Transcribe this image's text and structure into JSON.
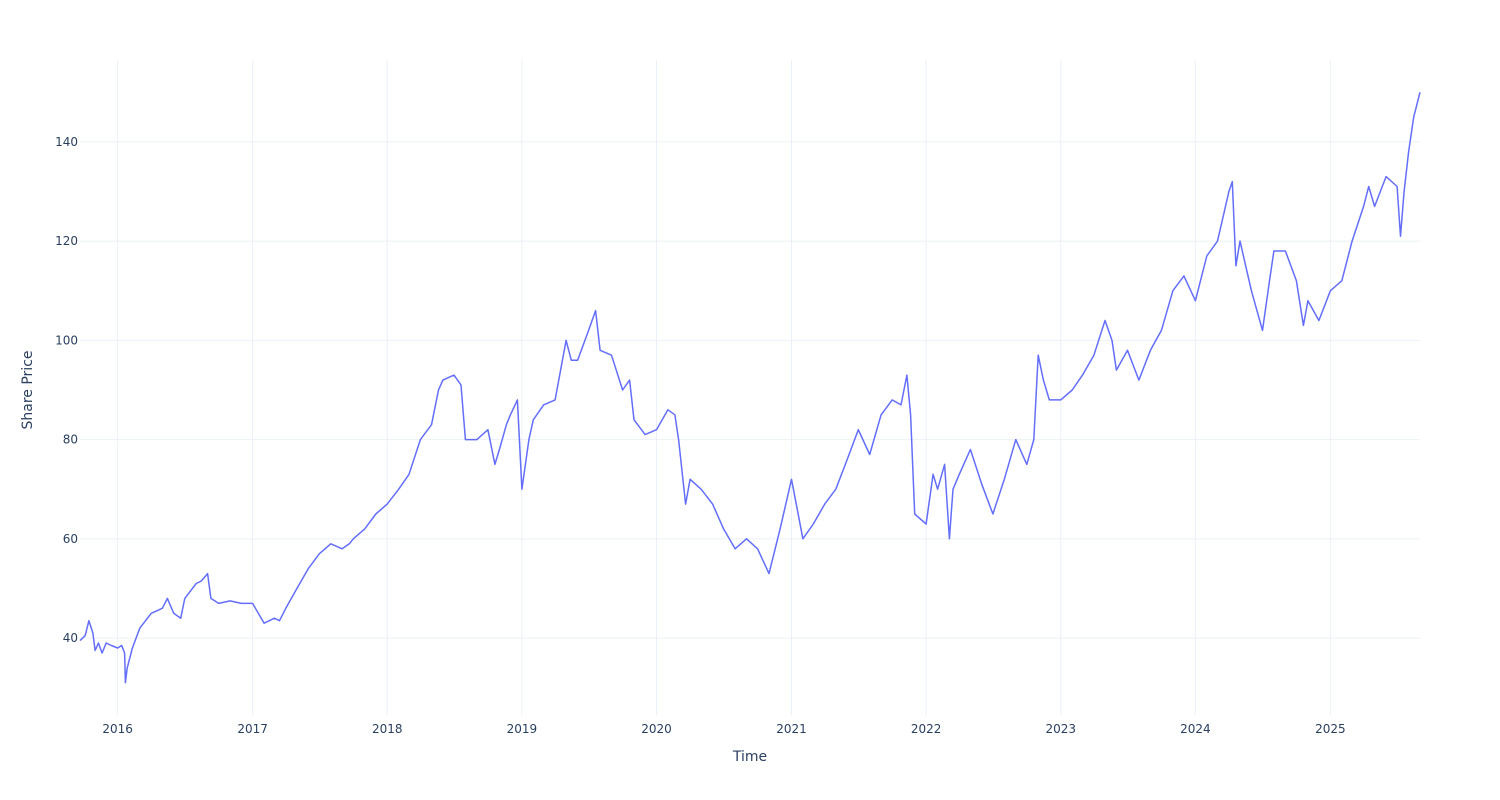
{
  "chart_data": {
    "type": "line",
    "title": "",
    "xlabel": "Time",
    "ylabel": "Share Price",
    "xlim": [
      "2015-09-21",
      "2025-09-01"
    ],
    "ylim": [
      24.5,
      156.5
    ],
    "x_tick_labels": [
      "2016",
      "2017",
      "2018",
      "2019",
      "2020",
      "2021",
      "2022",
      "2023",
      "2024",
      "2025"
    ],
    "y_ticks": [
      40,
      60,
      80,
      100,
      120,
      140
    ],
    "grid": true,
    "legend": "none",
    "line_color": "#636efa",
    "series": [
      {
        "x": [
          "2015-09-21",
          "2015-10-05",
          "2015-10-15",
          "2015-10-26",
          "2015-11-01",
          "2015-11-10",
          "2015-11-20",
          "2015-12-01",
          "2015-12-15",
          "2016-01-01",
          "2016-01-12",
          "2016-01-20",
          "2016-01-22",
          "2016-01-27",
          "2016-02-10",
          "2016-03-01",
          "2016-04-01",
          "2016-05-01",
          "2016-05-15",
          "2016-06-01",
          "2016-06-20",
          "2016-07-01",
          "2016-08-01",
          "2016-08-15",
          "2016-09-01",
          "2016-09-10",
          "2016-10-01",
          "2016-11-01",
          "2016-12-01",
          "2017-01-01",
          "2017-02-01",
          "2017-03-01",
          "2017-03-15",
          "2017-04-01",
          "2017-05-01",
          "2017-06-01",
          "2017-07-01",
          "2017-08-01",
          "2017-09-01",
          "2017-09-20",
          "2017-10-01",
          "2017-11-01",
          "2017-12-01",
          "2018-01-01",
          "2018-02-01",
          "2018-03-01",
          "2018-04-01",
          "2018-05-01",
          "2018-05-20",
          "2018-06-01",
          "2018-07-01",
          "2018-07-20",
          "2018-08-01",
          "2018-09-01",
          "2018-10-01",
          "2018-10-20",
          "2018-11-01",
          "2018-11-20",
          "2018-12-01",
          "2018-12-20",
          "2019-01-01",
          "2019-01-20",
          "2019-02-01",
          "2019-03-01",
          "2019-04-01",
          "2019-05-01",
          "2019-05-15",
          "2019-06-01",
          "2019-07-01",
          "2019-07-20",
          "2019-08-01",
          "2019-09-01",
          "2019-10-01",
          "2019-10-20",
          "2019-11-01",
          "2019-12-01",
          "2020-01-01",
          "2020-02-01",
          "2020-02-20",
          "2020-03-01",
          "2020-03-20",
          "2020-04-01",
          "2020-05-01",
          "2020-06-01",
          "2020-07-01",
          "2020-08-01",
          "2020-09-01",
          "2020-10-01",
          "2020-11-01",
          "2020-12-01",
          "2021-01-01",
          "2021-02-01",
          "2021-03-01",
          "2021-04-01",
          "2021-05-01",
          "2021-06-01",
          "2021-07-01",
          "2021-08-01",
          "2021-09-01",
          "2021-10-01",
          "2021-10-25",
          "2021-11-10",
          "2021-11-20",
          "2021-12-01",
          "2022-01-01",
          "2022-01-20",
          "2022-02-01",
          "2022-02-20",
          "2022-03-05",
          "2022-03-15",
          "2022-04-01",
          "2022-05-01",
          "2022-06-01",
          "2022-07-01",
          "2022-08-01",
          "2022-09-01",
          "2022-10-01",
          "2022-10-20",
          "2022-11-01",
          "2022-11-15",
          "2022-12-01",
          "2023-01-01",
          "2023-02-01",
          "2023-03-01",
          "2023-04-01",
          "2023-05-01",
          "2023-05-20",
          "2023-06-01",
          "2023-07-01",
          "2023-08-01",
          "2023-09-01",
          "2023-10-01",
          "2023-11-01",
          "2023-12-01",
          "2024-01-01",
          "2024-02-01",
          "2024-03-01",
          "2024-04-01",
          "2024-04-10",
          "2024-04-20",
          "2024-05-01",
          "2024-06-01",
          "2024-07-01",
          "2024-07-20",
          "2024-08-01",
          "2024-09-01",
          "2024-10-01",
          "2024-10-20",
          "2024-11-01",
          "2024-12-01",
          "2025-01-01",
          "2025-02-01",
          "2025-03-01",
          "2025-04-01",
          "2025-04-15",
          "2025-05-01",
          "2025-06-01",
          "2025-07-01",
          "2025-07-10",
          "2025-07-20",
          "2025-08-01",
          "2025-08-15",
          "2025-09-01"
        ],
        "values": [
          39.5,
          40.5,
          43.5,
          41.0,
          37.5,
          39.0,
          37.0,
          39.0,
          38.5,
          38.0,
          38.5,
          37.0,
          31.0,
          34.0,
          38.0,
          42.0,
          45.0,
          46.0,
          48.0,
          45.0,
          44.0,
          48.0,
          51.0,
          51.5,
          53.0,
          48.0,
          47.0,
          47.5,
          47.0,
          47.0,
          43.0,
          44.0,
          43.5,
          46.0,
          50.0,
          54.0,
          57.0,
          59.0,
          58.0,
          59.0,
          60.0,
          62.0,
          65.0,
          67.0,
          70.0,
          73.0,
          80.0,
          83.0,
          90.0,
          92.0,
          93.0,
          91.0,
          80.0,
          80.0,
          82.0,
          75.0,
          78.0,
          83.0,
          85.0,
          88.0,
          70.0,
          80.0,
          84.0,
          87.0,
          88.0,
          100.0,
          96.0,
          96.0,
          102.0,
          106.0,
          98.0,
          97.0,
          90.0,
          92.0,
          84.0,
          81.0,
          82.0,
          86.0,
          85.0,
          80.0,
          67.0,
          72.0,
          70.0,
          67.0,
          62.0,
          58.0,
          60.0,
          58.0,
          53.0,
          62.0,
          72.0,
          60.0,
          63.0,
          67.0,
          70.0,
          76.0,
          82.0,
          77.0,
          85.0,
          88.0,
          87.0,
          93.0,
          85.0,
          65.0,
          63.0,
          73.0,
          70.0,
          75.0,
          60.0,
          70.0,
          73.0,
          78.0,
          71.0,
          65.0,
          72.0,
          80.0,
          75.0,
          80.0,
          97.0,
          92.0,
          88.0,
          88.0,
          90.0,
          93.0,
          97.0,
          104.0,
          100.0,
          94.0,
          98.0,
          92.0,
          98.0,
          102.0,
          110.0,
          113.0,
          108.0,
          117.0,
          120.0,
          130.0,
          132.0,
          115.0,
          120.0,
          110.0,
          102.0,
          112.0,
          118.0,
          118.0,
          112.0,
          103.0,
          108.0,
          104.0,
          110.0,
          112.0,
          120.0,
          127.0,
          131.0,
          127.0,
          133.0,
          131.0,
          121.0,
          130.0,
          138.0,
          145.0,
          150.0
        ]
      }
    ]
  }
}
